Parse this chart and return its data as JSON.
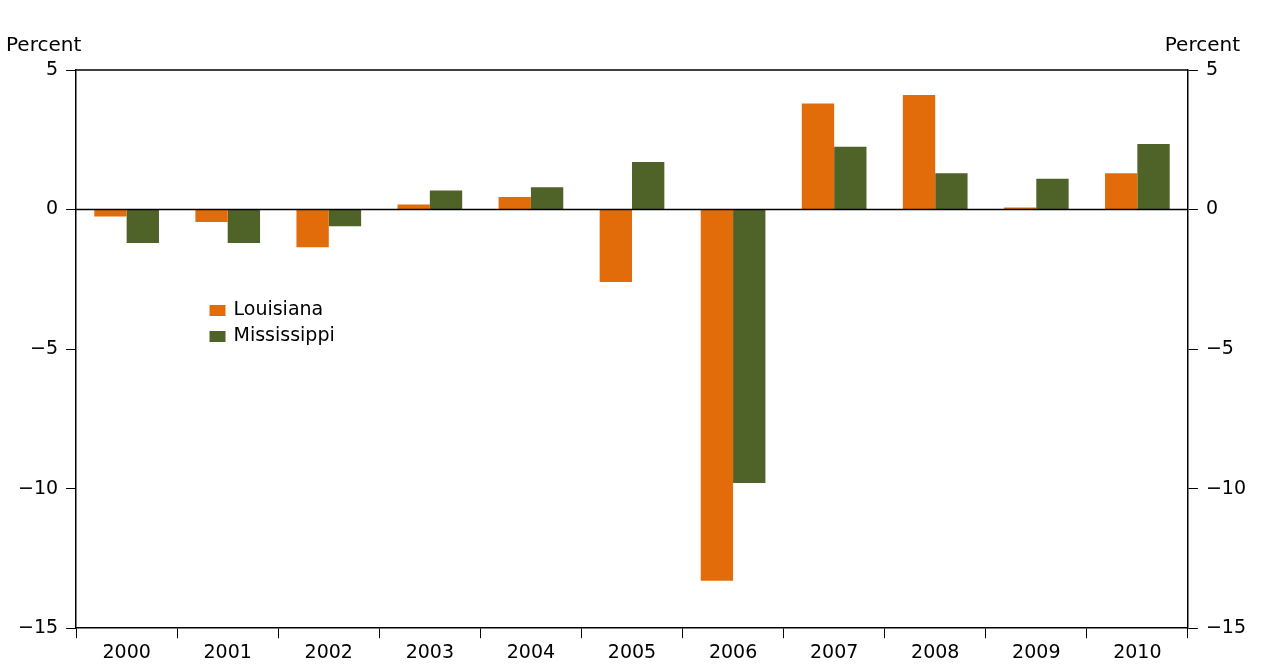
{
  "chart_data": {
    "type": "bar",
    "ylabel": "Percent",
    "y2label": "Percent",
    "categories": [
      "2000",
      "2001",
      "2002",
      "2003",
      "2004",
      "2005",
      "2006",
      "2007",
      "2008",
      "2009",
      "2010"
    ],
    "series": [
      {
        "name": "Louisiana",
        "color": "#e36c0a",
        "values": [
          -0.25,
          -0.45,
          -1.35,
          0.18,
          0.45,
          -2.6,
          -13.3,
          3.8,
          4.1,
          0.07,
          1.3
        ]
      },
      {
        "name": "Mississippi",
        "color": "#4f6228",
        "values": [
          -1.2,
          -1.2,
          -0.6,
          0.68,
          0.8,
          1.7,
          -9.8,
          2.25,
          1.3,
          1.1,
          2.35
        ]
      }
    ],
    "ylim": [
      -15,
      5
    ],
    "yticks": [
      -15,
      -10,
      -5,
      0,
      5
    ],
    "y2lim": [
      -15,
      5
    ],
    "y2ticks": [
      -15,
      -10,
      -5,
      0,
      5
    ],
    "ref_lines": [
      {
        "axis": "y",
        "value": 0
      }
    ],
    "grid": false,
    "legend": "left"
  }
}
